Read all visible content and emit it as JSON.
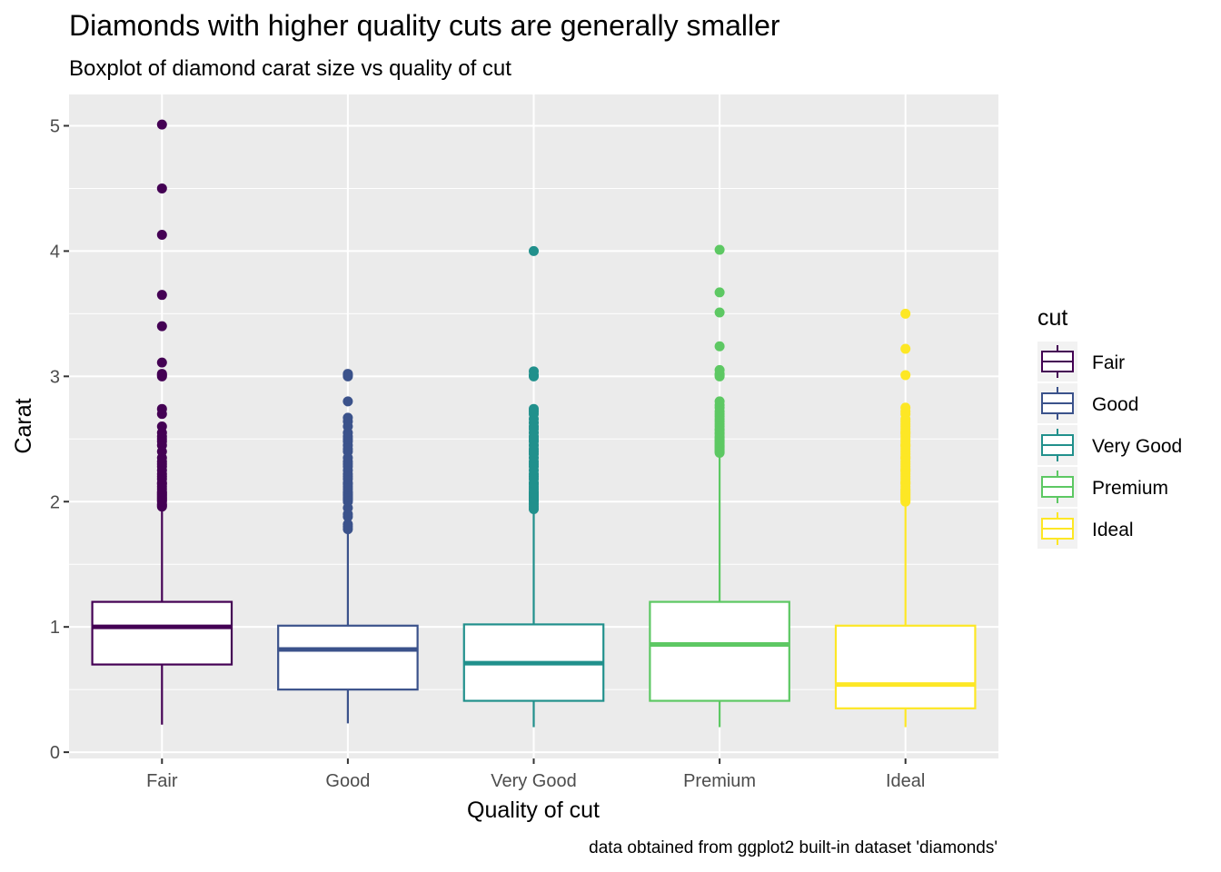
{
  "chart_data": {
    "type": "boxplot",
    "title": "Diamonds with higher quality cuts are generally smaller",
    "subtitle": "Boxplot of diamond carat size vs quality of cut",
    "caption": "data obtained from ggplot2 built-in dataset 'diamonds'",
    "xlabel": "Quality of cut",
    "ylabel": "Carat",
    "ylim": [
      -0.05,
      5.25
    ],
    "yticks": [
      0,
      1,
      2,
      3,
      4,
      5
    ],
    "grid": true,
    "legend": {
      "title": "cut",
      "position": "right",
      "entries": [
        "Fair",
        "Good",
        "Very Good",
        "Premium",
        "Ideal"
      ]
    },
    "categories": [
      "Fair",
      "Good",
      "Very Good",
      "Premium",
      "Ideal"
    ],
    "series": [
      {
        "name": "Fair",
        "color": "#440154",
        "whisker_low": 0.22,
        "q1": 0.7,
        "median": 1.0,
        "q3": 1.2,
        "whisker_high": 1.95,
        "outliers": [
          1.96,
          1.97,
          1.98,
          2.0,
          2.01,
          2.02,
          2.03,
          2.04,
          2.05,
          2.06,
          2.07,
          2.08,
          2.1,
          2.12,
          2.14,
          2.15,
          2.18,
          2.2,
          2.22,
          2.25,
          2.28,
          2.3,
          2.32,
          2.35,
          2.4,
          2.45,
          2.48,
          2.5,
          2.52,
          2.55,
          2.6,
          2.7,
          2.74,
          3.0,
          3.01,
          3.02,
          3.11,
          3.4,
          3.65,
          4.13,
          4.5,
          5.01
        ]
      },
      {
        "name": "Good",
        "color": "#3b528b",
        "whisker_low": 0.23,
        "q1": 0.5,
        "median": 0.82,
        "q3": 1.01,
        "whisker_high": 1.77,
        "outliers": [
          1.78,
          1.8,
          1.82,
          1.88,
          1.9,
          1.95,
          2.0,
          2.01,
          2.02,
          2.03,
          2.04,
          2.05,
          2.06,
          2.07,
          2.08,
          2.1,
          2.12,
          2.14,
          2.15,
          2.18,
          2.2,
          2.22,
          2.25,
          2.28,
          2.3,
          2.32,
          2.35,
          2.4,
          2.42,
          2.45,
          2.48,
          2.5,
          2.52,
          2.55,
          2.6,
          2.64,
          2.67,
          2.8,
          3.0,
          3.01,
          3.02
        ]
      },
      {
        "name": "Very Good",
        "color": "#21908c",
        "whisker_low": 0.2,
        "q1": 0.41,
        "median": 0.71,
        "q3": 1.02,
        "whisker_high": 1.93,
        "outliers": [
          1.94,
          1.96,
          1.98,
          2.0,
          2.01,
          2.02,
          2.03,
          2.04,
          2.05,
          2.06,
          2.07,
          2.08,
          2.1,
          2.12,
          2.14,
          2.15,
          2.18,
          2.2,
          2.22,
          2.25,
          2.28,
          2.3,
          2.32,
          2.35,
          2.38,
          2.4,
          2.42,
          2.45,
          2.48,
          2.5,
          2.52,
          2.55,
          2.58,
          2.6,
          2.63,
          2.66,
          2.7,
          2.72,
          2.74,
          3.0,
          3.01,
          3.04,
          4.0
        ]
      },
      {
        "name": "Premium",
        "color": "#5dc863",
        "whisker_low": 0.2,
        "q1": 0.41,
        "median": 0.86,
        "q3": 1.2,
        "whisker_high": 2.38,
        "outliers": [
          2.39,
          2.4,
          2.41,
          2.42,
          2.43,
          2.44,
          2.45,
          2.46,
          2.47,
          2.48,
          2.49,
          2.5,
          2.51,
          2.52,
          2.54,
          2.55,
          2.57,
          2.58,
          2.6,
          2.62,
          2.64,
          2.66,
          2.68,
          2.7,
          2.72,
          2.75,
          2.77,
          2.8,
          3.0,
          3.01,
          3.02,
          3.05,
          3.24,
          3.51,
          3.67,
          4.01
        ]
      },
      {
        "name": "Ideal",
        "color": "#fde725",
        "whisker_low": 0.2,
        "q1": 0.35,
        "median": 0.54,
        "q3": 1.01,
        "whisker_high": 1.99,
        "outliers": [
          2.0,
          2.01,
          2.02,
          2.03,
          2.04,
          2.05,
          2.06,
          2.07,
          2.08,
          2.09,
          2.1,
          2.12,
          2.14,
          2.15,
          2.16,
          2.18,
          2.2,
          2.22,
          2.24,
          2.25,
          2.26,
          2.28,
          2.3,
          2.32,
          2.34,
          2.35,
          2.36,
          2.38,
          2.4,
          2.42,
          2.44,
          2.45,
          2.46,
          2.48,
          2.5,
          2.52,
          2.54,
          2.55,
          2.56,
          2.58,
          2.6,
          2.62,
          2.64,
          2.66,
          2.7,
          2.72,
          2.75,
          3.01,
          3.22,
          3.5
        ]
      }
    ]
  }
}
